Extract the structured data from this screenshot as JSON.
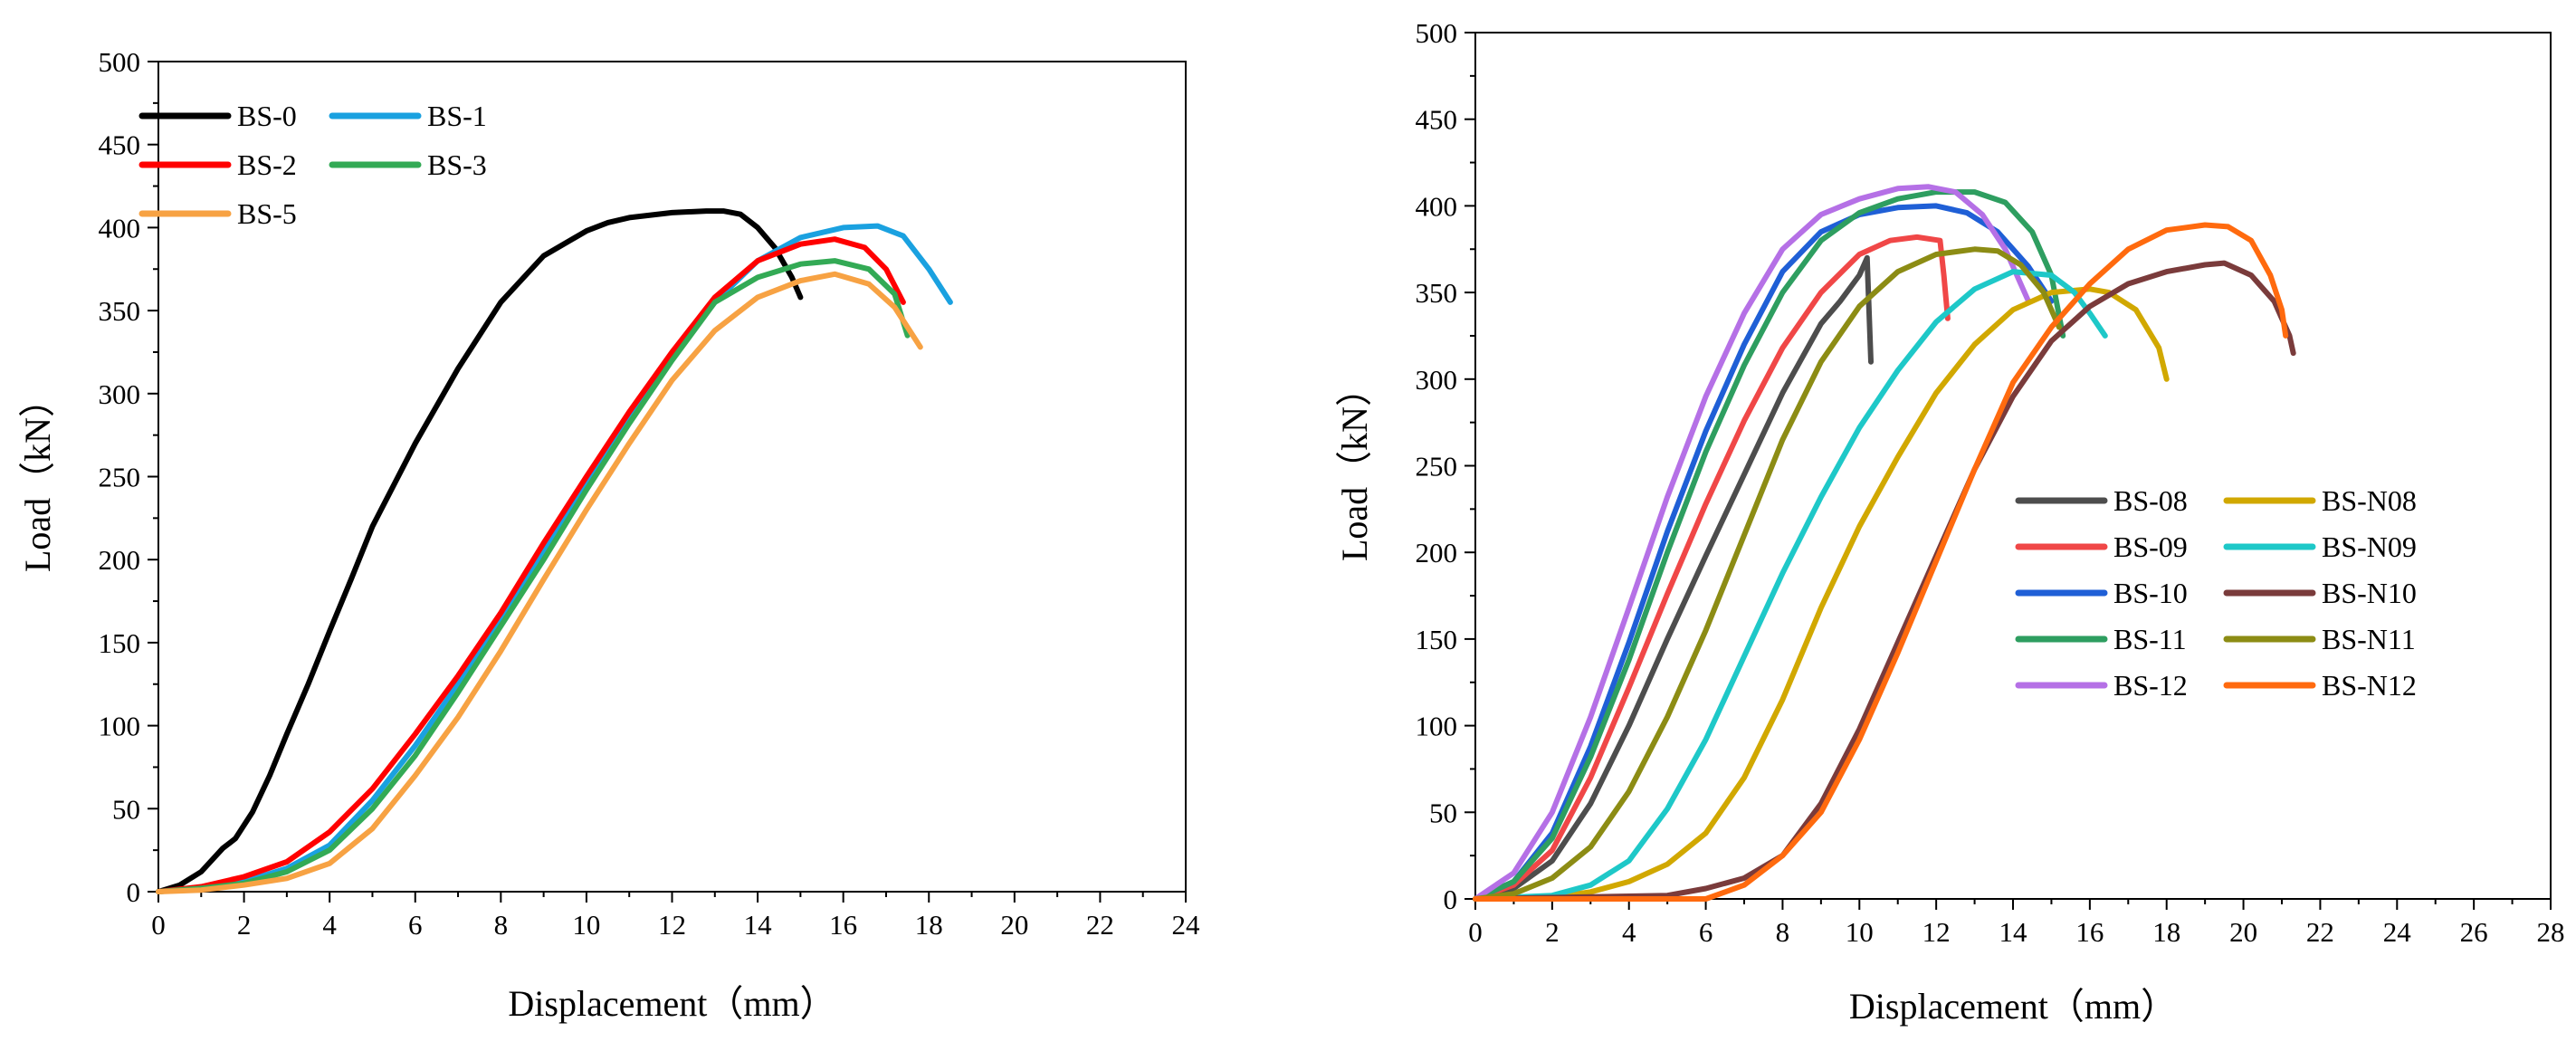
{
  "chart_data": [
    {
      "type": "line",
      "xlabel": "Displacement（mm）",
      "ylabel": "Load（kN）",
      "xlim": [
        0,
        24
      ],
      "ylim": [
        0,
        500
      ],
      "xticks": [
        0,
        2,
        4,
        6,
        8,
        10,
        12,
        14,
        16,
        18,
        20,
        22,
        24
      ],
      "yticks": [
        0,
        50,
        100,
        150,
        200,
        250,
        300,
        350,
        400,
        450,
        500
      ],
      "legend_position": "top-left",
      "legend_columns": 2,
      "series": [
        {
          "name": "BS-0",
          "color": "#000000",
          "x": [
            0,
            0.5,
            1.0,
            1.5,
            1.8,
            2.2,
            2.6,
            3.0,
            3.5,
            4.0,
            4.5,
            5.0,
            6.0,
            7.0,
            8.0,
            9.0,
            10.0,
            10.5,
            11.0,
            12.0,
            12.8,
            13.2,
            13.6,
            14.0,
            14.4,
            14.8,
            15.0
          ],
          "y": [
            0,
            4,
            12,
            26,
            32,
            48,
            70,
            95,
            125,
            157,
            188,
            220,
            270,
            315,
            355,
            383,
            398,
            403,
            406,
            409,
            410,
            410,
            408,
            400,
            388,
            370,
            358
          ]
        },
        {
          "name": "BS-1",
          "color": "#1aa1e0",
          "x": [
            0,
            1,
            2,
            3,
            4,
            5,
            6,
            7,
            8,
            9,
            10,
            11,
            12,
            13,
            14,
            15,
            16,
            16.8,
            17.4,
            18.0,
            18.5
          ],
          "y": [
            0,
            2,
            6,
            14,
            28,
            55,
            88,
            125,
            163,
            205,
            246,
            285,
            322,
            355,
            380,
            394,
            400,
            401,
            395,
            375,
            355
          ]
        },
        {
          "name": "BS-2",
          "color": "#ff0000",
          "x": [
            0,
            1,
            2,
            3,
            4,
            5,
            6,
            7,
            8,
            9,
            10,
            11,
            12,
            13,
            14,
            15,
            15.8,
            16.5,
            17.0,
            17.4
          ],
          "y": [
            0,
            3,
            9,
            18,
            36,
            62,
            95,
            130,
            168,
            210,
            250,
            289,
            325,
            358,
            380,
            390,
            393,
            388,
            375,
            355
          ]
        },
        {
          "name": "BS-3",
          "color": "#33aa55",
          "x": [
            0,
            1,
            2,
            3,
            4,
            5,
            6,
            7,
            8,
            9,
            10,
            11,
            12,
            13,
            14,
            15,
            15.8,
            16.6,
            17.2,
            17.5
          ],
          "y": [
            0,
            2,
            5,
            12,
            25,
            50,
            82,
            120,
            160,
            200,
            242,
            282,
            320,
            355,
            370,
            378,
            380,
            375,
            360,
            335
          ]
        },
        {
          "name": "BS-5",
          "color": "#f7a243",
          "x": [
            0,
            1,
            2,
            3,
            4,
            5,
            6,
            7,
            8,
            9,
            10,
            11,
            12,
            13,
            14,
            15,
            15.8,
            16.6,
            17.2,
            17.8
          ],
          "y": [
            0,
            1,
            4,
            8,
            17,
            38,
            70,
            105,
            145,
            188,
            230,
            270,
            308,
            338,
            358,
            368,
            372,
            366,
            352,
            328
          ]
        }
      ]
    },
    {
      "type": "line",
      "xlabel": "Displacement（mm）",
      "ylabel": "Load（kN）",
      "xlim": [
        0,
        28
      ],
      "ylim": [
        0,
        500
      ],
      "xticks": [
        0,
        2,
        4,
        6,
        8,
        10,
        12,
        14,
        16,
        18,
        20,
        22,
        24,
        26,
        28
      ],
      "yticks": [
        0,
        50,
        100,
        150,
        200,
        250,
        300,
        350,
        400,
        450,
        500
      ],
      "legend_position": "lower-right",
      "legend_columns": 2,
      "series": [
        {
          "name": "BS-08",
          "color": "#4d4d4d",
          "x": [
            0,
            1,
            2,
            3,
            4,
            5,
            6,
            7,
            8,
            9,
            9.5,
            10,
            10.2,
            10.3
          ],
          "y": [
            0,
            6,
            22,
            55,
            100,
            150,
            198,
            245,
            292,
            332,
            345,
            360,
            370,
            310
          ]
        },
        {
          "name": "BS-09",
          "color": "#f04747",
          "x": [
            0,
            1,
            2,
            3,
            4,
            5,
            6,
            7,
            8,
            9,
            10,
            10.8,
            11.5,
            12.1,
            12.2,
            12.3
          ],
          "y": [
            0,
            8,
            28,
            70,
            122,
            176,
            228,
            276,
            318,
            350,
            372,
            380,
            382,
            380,
            360,
            335
          ]
        },
        {
          "name": "BS-10",
          "color": "#1f5fd6",
          "x": [
            0,
            1,
            2,
            3,
            4,
            5,
            6,
            7,
            8,
            9,
            10,
            11,
            12,
            12.8,
            13.6,
            14.4,
            15.0
          ],
          "y": [
            0,
            10,
            38,
            88,
            148,
            212,
            270,
            320,
            362,
            385,
            395,
            399,
            400,
            396,
            385,
            365,
            345
          ]
        },
        {
          "name": "BS-11",
          "color": "#2e9e60",
          "x": [
            0,
            1,
            2,
            3,
            4,
            5,
            6,
            7,
            8,
            9,
            10,
            11,
            12,
            13,
            13.8,
            14.5,
            15.0,
            15.3
          ],
          "y": [
            0,
            10,
            35,
            82,
            138,
            200,
            258,
            308,
            350,
            380,
            396,
            404,
            408,
            408,
            402,
            385,
            360,
            325
          ]
        },
        {
          "name": "BS-12",
          "color": "#b570e6",
          "x": [
            0,
            1,
            2,
            3,
            4,
            5,
            6,
            7,
            8,
            9,
            10,
            11,
            11.8,
            12.5,
            13.2,
            13.8,
            14.4
          ],
          "y": [
            0,
            15,
            50,
            105,
            168,
            232,
            290,
            338,
            375,
            395,
            404,
            410,
            411,
            408,
            395,
            375,
            345
          ]
        },
        {
          "name": "BS-N08",
          "color": "#d1a800",
          "x": [
            0,
            2,
            3,
            4,
            5,
            6,
            7,
            8,
            9,
            10,
            11,
            12,
            13,
            14,
            15,
            16,
            16.5,
            17.2,
            17.8,
            18.0
          ],
          "y": [
            0,
            1,
            4,
            10,
            20,
            38,
            70,
            115,
            168,
            215,
            255,
            292,
            320,
            340,
            350,
            352,
            350,
            340,
            318,
            300
          ]
        },
        {
          "name": "BS-N09",
          "color": "#1ec8c8",
          "x": [
            0,
            2,
            3,
            4,
            5,
            6,
            7,
            8,
            9,
            10,
            11,
            12,
            13,
            14,
            15,
            15.6,
            16.0,
            16.4
          ],
          "y": [
            0,
            2,
            8,
            22,
            52,
            92,
            140,
            188,
            232,
            272,
            305,
            333,
            352,
            362,
            360,
            350,
            338,
            325
          ]
        },
        {
          "name": "BS-N10",
          "color": "#7a3b3b",
          "x": [
            0,
            5,
            6,
            7,
            8,
            9,
            10,
            11,
            12,
            13,
            14,
            15,
            16,
            17,
            18,
            19,
            19.5,
            20.2,
            20.8,
            21.2,
            21.3
          ],
          "y": [
            0,
            2,
            6,
            12,
            25,
            55,
            98,
            148,
            198,
            248,
            290,
            322,
            342,
            355,
            362,
            366,
            367,
            360,
            345,
            325,
            315
          ]
        },
        {
          "name": "BS-N11",
          "color": "#8c8c14",
          "x": [
            0,
            1,
            2,
            3,
            4,
            5,
            6,
            7,
            8,
            9,
            10,
            11,
            12,
            13,
            13.6,
            14.2,
            14.8,
            15.2
          ],
          "y": [
            0,
            3,
            12,
            30,
            62,
            105,
            155,
            210,
            265,
            310,
            342,
            362,
            372,
            375,
            374,
            366,
            350,
            330
          ]
        },
        {
          "name": "BS-N12",
          "color": "#ff6a0e",
          "x": [
            0,
            6,
            7,
            8,
            9,
            10,
            11,
            12,
            13,
            14,
            15,
            16,
            17,
            18,
            19,
            19.6,
            20.2,
            20.7,
            21.0,
            21.1
          ],
          "y": [
            0,
            0,
            8,
            25,
            50,
            92,
            142,
            195,
            248,
            298,
            330,
            355,
            375,
            386,
            389,
            388,
            380,
            360,
            340,
            325
          ]
        }
      ]
    }
  ]
}
